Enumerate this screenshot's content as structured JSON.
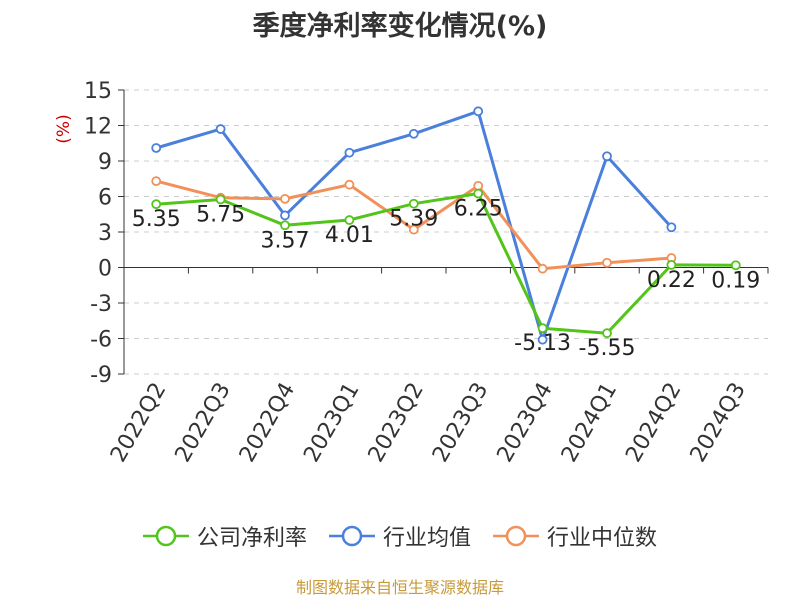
{
  "chart_data": {
    "type": "line",
    "title": "季度净利率变化情况(%)",
    "ylabel": "(%)",
    "ylim": [
      -9,
      15
    ],
    "yticks": [
      -9,
      -6,
      -3,
      0,
      3,
      6,
      9,
      12,
      15
    ],
    "grid": true,
    "legend_position": "bottom",
    "categories": [
      "2022Q2",
      "2022Q3",
      "2022Q4",
      "2023Q1",
      "2023Q2",
      "2023Q3",
      "2023Q4",
      "2024Q1",
      "2024Q2",
      "2024Q3"
    ],
    "series": [
      {
        "name": "公司净利率",
        "color": "#52c41a",
        "values": [
          5.35,
          5.75,
          3.57,
          4.01,
          5.39,
          6.25,
          -5.13,
          -5.55,
          0.22,
          0.19
        ],
        "labels": [
          "5.35",
          "5.75",
          "3.57",
          "4.01",
          "5.39",
          "6.25",
          "-5.13",
          "-5.55",
          "0.22",
          "0.19"
        ]
      },
      {
        "name": "行业均值",
        "color": "#4a7fdb",
        "values": [
          10.1,
          11.7,
          4.4,
          9.7,
          11.3,
          13.2,
          -6.1,
          9.4,
          3.4,
          null
        ]
      },
      {
        "name": "行业中位数",
        "color": "#f2905a",
        "values": [
          7.3,
          5.9,
          5.8,
          7.0,
          3.2,
          6.9,
          -0.1,
          0.4,
          0.8,
          null
        ]
      }
    ],
    "source": "制图数据来自恒生聚源数据库",
    "colors": {
      "axis_label": "#cc0000",
      "source": "#c79a3a",
      "grid": "#cccccc",
      "text": "#333333"
    }
  }
}
